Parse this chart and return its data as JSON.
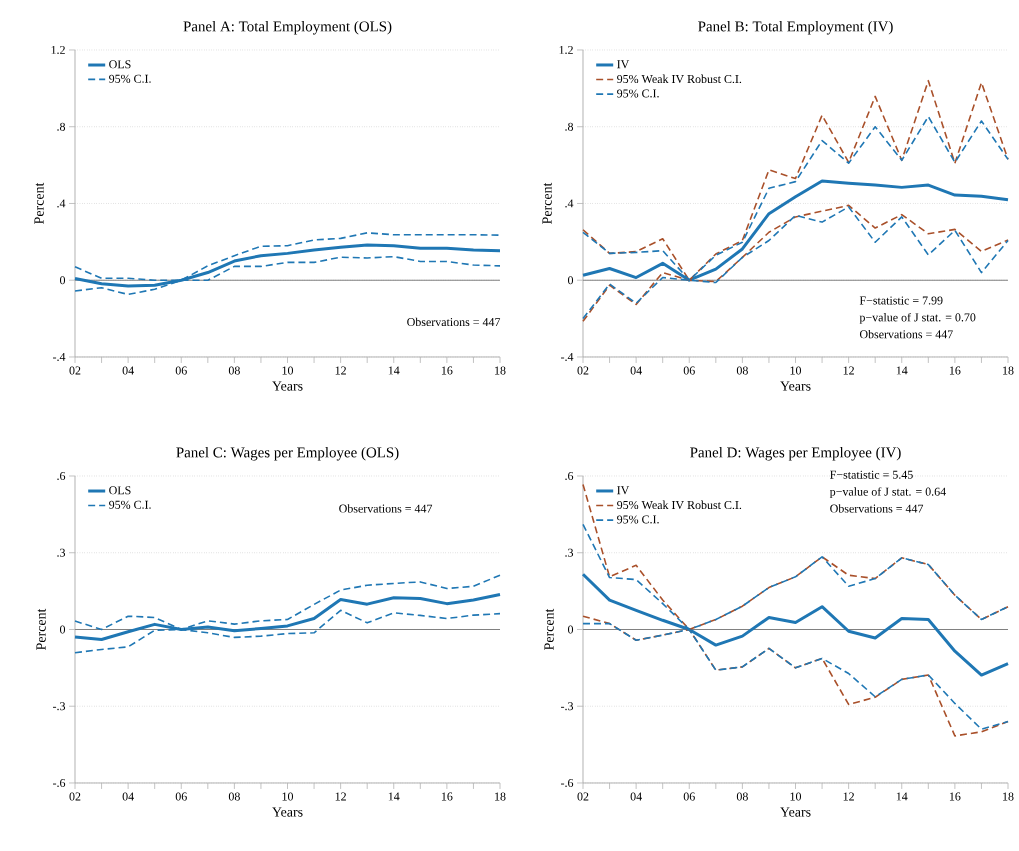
{
  "chart_data": [
    {
      "type": "line",
      "title": "Panel A: Total Employment (OLS)",
      "xlabel": "Years",
      "ylabel": "Percent",
      "x": [
        2,
        3,
        4,
        5,
        6,
        7,
        8,
        9,
        10,
        11,
        12,
        13,
        14,
        15,
        16,
        17,
        18
      ],
      "xlim": [
        2,
        18
      ],
      "xticks": [
        {
          "value": 2,
          "label": "02"
        },
        {
          "value": 3,
          "label": null
        },
        {
          "value": 4,
          "label": "04"
        },
        {
          "value": 5,
          "label": null
        },
        {
          "value": 6,
          "label": "06"
        },
        {
          "value": 7,
          "label": null
        },
        {
          "value": 8,
          "label": "08"
        },
        {
          "value": 9,
          "label": null
        },
        {
          "value": 10,
          "label": "10"
        },
        {
          "value": 11,
          "label": null
        },
        {
          "value": 12,
          "label": "12"
        },
        {
          "value": 13,
          "label": null
        },
        {
          "value": 14,
          "label": "14"
        },
        {
          "value": 15,
          "label": null
        },
        {
          "value": 16,
          "label": "16"
        },
        {
          "value": 17,
          "label": null
        },
        {
          "value": 18,
          "label": "18"
        }
      ],
      "ylim": [
        -0.4,
        1.2
      ],
      "yticks": [
        {
          "value": -0.4,
          "label": "-.4"
        },
        0,
        {
          "value": 0.4,
          "label": ".4"
        },
        {
          "value": 0.8,
          "label": ".8"
        },
        1.2
      ],
      "grid": "y",
      "legend": "top left",
      "ref_lines": [
        {
          "axis": "y",
          "value": 0,
          "color": "#808080"
        }
      ],
      "annotations": [
        "Observations = 447"
      ],
      "series": [
        {
          "name": "OLS",
          "color": "#1f77b4",
          "line_style": "solid",
          "values": [
            0.009,
            -0.018,
            -0.03,
            -0.026,
            0,
            0.04,
            0.1,
            0.128,
            0.14,
            0.158,
            0.172,
            0.184,
            0.18,
            0.167,
            0.167,
            0.158,
            0.154
          ]
        },
        {
          "name": "95% C.I.",
          "color": "#1f77b4",
          "line_style": "dashed",
          "values": [
            0.07,
            0.01,
            0.01,
            0,
            0,
            0.075,
            0.128,
            0.177,
            0.18,
            0.21,
            0.218,
            0.247,
            0.237,
            0.237,
            0.237,
            0.237,
            0.235
          ]
        },
        {
          "color": "#1f77b4",
          "line_style": "dashed",
          "values": [
            -0.056,
            -0.039,
            -0.074,
            -0.047,
            0,
            0,
            0.072,
            0.072,
            0.093,
            0.093,
            0.12,
            0.116,
            0.123,
            0.098,
            0.098,
            0.079,
            0.075
          ]
        }
      ]
    },
    {
      "type": "line",
      "title": "Panel B: Total Employment (IV)",
      "xlabel": "Years",
      "ylabel": "Percent",
      "x": [
        2,
        3,
        4,
        5,
        6,
        7,
        8,
        9,
        10,
        11,
        12,
        13,
        14,
        15,
        16,
        17,
        18
      ],
      "xlim": [
        2,
        18
      ],
      "xticks": [
        {
          "value": 2,
          "label": "02"
        },
        {
          "value": 3,
          "label": null
        },
        {
          "value": 4,
          "label": "04"
        },
        {
          "value": 5,
          "label": null
        },
        {
          "value": 6,
          "label": "06"
        },
        {
          "value": 7,
          "label": null
        },
        {
          "value": 8,
          "label": "08"
        },
        {
          "value": 9,
          "label": null
        },
        {
          "value": 10,
          "label": "10"
        },
        {
          "value": 11,
          "label": null
        },
        {
          "value": 12,
          "label": "12"
        },
        {
          "value": 13,
          "label": null
        },
        {
          "value": 14,
          "label": "14"
        },
        {
          "value": 15,
          "label": null
        },
        {
          "value": 16,
          "label": "16"
        },
        {
          "value": 17,
          "label": null
        },
        {
          "value": 18,
          "label": "18"
        }
      ],
      "ylim": [
        -0.4,
        1.2
      ],
      "yticks": [
        {
          "value": -0.4,
          "label": "-.4"
        },
        0,
        {
          "value": 0.4,
          "label": ".4"
        },
        {
          "value": 0.8,
          "label": ".8"
        },
        1.2
      ],
      "grid": "y",
      "legend": "top left",
      "ref_lines": [
        {
          "axis": "y",
          "value": 0,
          "color": "#808080"
        }
      ],
      "annotations": [
        "F−statistic = 7.99",
        "p−value of J stat. = 0.70",
        "Observations = 447"
      ],
      "series": [
        {
          "name": "IV",
          "color": "#1f77b4",
          "line_style": "solid",
          "values": [
            0.026,
            0.061,
            0.014,
            0.088,
            0,
            0.058,
            0.163,
            0.347,
            0.435,
            0.517,
            0.505,
            0.496,
            0.484,
            0.496,
            0.444,
            0.438,
            0.42
          ]
        },
        {
          "name": "95% Weak IV Robust C.I.",
          "color": "#a9502a",
          "line_style": "dashed",
          "values": [
            0.263,
            0.14,
            0.149,
            0.216,
            0,
            0.137,
            0.207,
            0.575,
            0.53,
            0.86,
            0.614,
            0.958,
            0.625,
            1.04,
            0.61,
            1.03,
            0.63
          ]
        },
        {
          "color": "#a9502a",
          "line_style": "dashed",
          "values": [
            -0.214,
            -0.026,
            -0.126,
            0.04,
            0,
            -0.007,
            0.119,
            0.25,
            0.33,
            0.36,
            0.39,
            0.272,
            0.342,
            0.242,
            0.265,
            0.15,
            0.21
          ]
        },
        {
          "name": "95% C.I.",
          "color": "#1f77b4",
          "line_style": "dashed",
          "values": [
            0.25,
            0.14,
            0.145,
            0.154,
            0,
            0.13,
            0.198,
            0.479,
            0.514,
            0.728,
            0.61,
            0.8,
            0.625,
            0.853,
            0.614,
            0.83,
            0.63
          ]
        },
        {
          "color": "#1f77b4",
          "line_style": "dashed",
          "values": [
            -0.2,
            -0.02,
            -0.12,
            0.014,
            0,
            -0.012,
            0.119,
            0.207,
            0.338,
            0.303,
            0.382,
            0.198,
            0.33,
            0.132,
            0.26,
            0.04,
            0.207
          ]
        }
      ]
    },
    {
      "type": "line",
      "title": "Panel C: Wages per Employee (OLS)",
      "xlabel": "Years",
      "ylabel": "Percent",
      "x": [
        2,
        3,
        4,
        5,
        6,
        7,
        8,
        9,
        10,
        11,
        12,
        13,
        14,
        15,
        16,
        17,
        18
      ],
      "xlim": [
        2,
        18
      ],
      "xticks": [
        {
          "value": 2,
          "label": "02"
        },
        {
          "value": 3,
          "label": null
        },
        {
          "value": 4,
          "label": "04"
        },
        {
          "value": 5,
          "label": null
        },
        {
          "value": 6,
          "label": "06"
        },
        {
          "value": 7,
          "label": null
        },
        {
          "value": 8,
          "label": "08"
        },
        {
          "value": 9,
          "label": null
        },
        {
          "value": 10,
          "label": "10"
        },
        {
          "value": 11,
          "label": null
        },
        {
          "value": 12,
          "label": "12"
        },
        {
          "value": 13,
          "label": null
        },
        {
          "value": 14,
          "label": "14"
        },
        {
          "value": 15,
          "label": null
        },
        {
          "value": 16,
          "label": "16"
        },
        {
          "value": 17,
          "label": null
        },
        {
          "value": 18,
          "label": "18"
        }
      ],
      "ylim": [
        -0.6,
        0.6
      ],
      "yticks": [
        {
          "value": -0.6,
          "label": "-.6"
        },
        {
          "value": -0.3,
          "label": "-.3"
        },
        0,
        {
          "value": 0.3,
          "label": ".3"
        },
        {
          "value": 0.6,
          "label": ".6"
        }
      ],
      "grid": "y",
      "legend": "top left",
      "ref_lines": [
        {
          "axis": "y",
          "value": 0,
          "color": "#808080"
        }
      ],
      "annotations": [
        "Observations = 447"
      ],
      "series": [
        {
          "name": "OLS",
          "color": "#1f77b4",
          "line_style": "solid",
          "values": [
            -0.029,
            -0.039,
            -0.009,
            0.02,
            0,
            0.01,
            -0.005,
            0.004,
            0.014,
            0.043,
            0.117,
            0.099,
            0.124,
            0.121,
            0.101,
            0.115,
            0.137
          ]
        },
        {
          "name": "95% C.I.",
          "color": "#1f77b4",
          "line_style": "dashed",
          "values": [
            0.033,
            0,
            0.052,
            0.047,
            0,
            0.034,
            0.021,
            0.034,
            0.039,
            0.098,
            0.154,
            0.173,
            0.18,
            0.186,
            0.16,
            0.169,
            0.212
          ]
        },
        {
          "color": "#1f77b4",
          "line_style": "dashed",
          "values": [
            -0.091,
            -0.078,
            -0.068,
            -0.003,
            0,
            -0.013,
            -0.031,
            -0.026,
            -0.016,
            -0.013,
            0.075,
            0.026,
            0.065,
            0.055,
            0.043,
            0.056,
            0.062
          ]
        }
      ]
    },
    {
      "type": "line",
      "title": "Panel D: Wages per Employee (IV)",
      "xlabel": "Years",
      "ylabel": "Percent",
      "x": [
        2,
        3,
        4,
        5,
        6,
        7,
        8,
        9,
        10,
        11,
        12,
        13,
        14,
        15,
        16,
        17,
        18
      ],
      "xlim": [
        2,
        18
      ],
      "xticks": [
        {
          "value": 2,
          "label": "02"
        },
        {
          "value": 3,
          "label": null
        },
        {
          "value": 4,
          "label": "04"
        },
        {
          "value": 5,
          "label": null
        },
        {
          "value": 6,
          "label": "06"
        },
        {
          "value": 7,
          "label": null
        },
        {
          "value": 8,
          "label": "08"
        },
        {
          "value": 9,
          "label": null
        },
        {
          "value": 10,
          "label": "10"
        },
        {
          "value": 11,
          "label": null
        },
        {
          "value": 12,
          "label": "12"
        },
        {
          "value": 13,
          "label": null
        },
        {
          "value": 14,
          "label": "14"
        },
        {
          "value": 15,
          "label": null
        },
        {
          "value": 16,
          "label": "16"
        },
        {
          "value": 17,
          "label": null
        },
        {
          "value": 18,
          "label": "18"
        }
      ],
      "ylim": [
        -0.6,
        0.6
      ],
      "yticks": [
        {
          "value": -0.6,
          "label": "-.6"
        },
        {
          "value": -0.3,
          "label": "-.3"
        },
        0,
        {
          "value": 0.3,
          "label": ".3"
        },
        {
          "value": 0.6,
          "label": ".6"
        }
      ],
      "grid": "y",
      "legend": "top left",
      "ref_lines": [
        {
          "axis": "y",
          "value": 0,
          "color": "#808080"
        }
      ],
      "annotations": [
        "F−statistic = 5.45",
        "p−value of J stat. = 0.64",
        "Observations = 447"
      ],
      "series": [
        {
          "name": "IV",
          "color": "#1f77b4",
          "line_style": "solid",
          "values": [
            0.216,
            0.115,
            0.075,
            0.036,
            0,
            -0.061,
            -0.026,
            0.047,
            0.027,
            0.089,
            -0.007,
            -0.033,
            0.043,
            0.039,
            -0.085,
            -0.178,
            -0.133
          ]
        },
        {
          "name": "95% Weak IV Robust C.I.",
          "color": "#a9502a",
          "line_style": "dashed",
          "values": [
            0.567,
            0.206,
            0.251,
            0.115,
            0,
            0.039,
            0.091,
            0.164,
            0.206,
            0.284,
            0.212,
            0.199,
            0.28,
            0.254,
            0.134,
            0.039,
            0.089
          ]
        },
        {
          "color": "#a9502a",
          "line_style": "dashed",
          "values": [
            0.052,
            0.023,
            -0.042,
            -0.022,
            0,
            -0.159,
            -0.146,
            -0.074,
            -0.15,
            -0.113,
            -0.293,
            -0.265,
            -0.195,
            -0.178,
            -0.416,
            -0.4,
            -0.36
          ]
        },
        {
          "name": "95% C.I.",
          "color": "#1f77b4",
          "line_style": "dashed",
          "values": [
            0.411,
            0.203,
            0.195,
            0.101,
            0,
            0.039,
            0.091,
            0.164,
            0.206,
            0.284,
            0.169,
            0.199,
            0.28,
            0.254,
            0.134,
            0.039,
            0.089
          ]
        },
        {
          "color": "#1f77b4",
          "line_style": "dashed",
          "values": [
            0.023,
            0.023,
            -0.042,
            -0.022,
            0,
            -0.159,
            -0.146,
            -0.074,
            -0.15,
            -0.113,
            -0.172,
            -0.263,
            -0.195,
            -0.178,
            -0.289,
            -0.39,
            -0.36
          ]
        }
      ]
    }
  ]
}
